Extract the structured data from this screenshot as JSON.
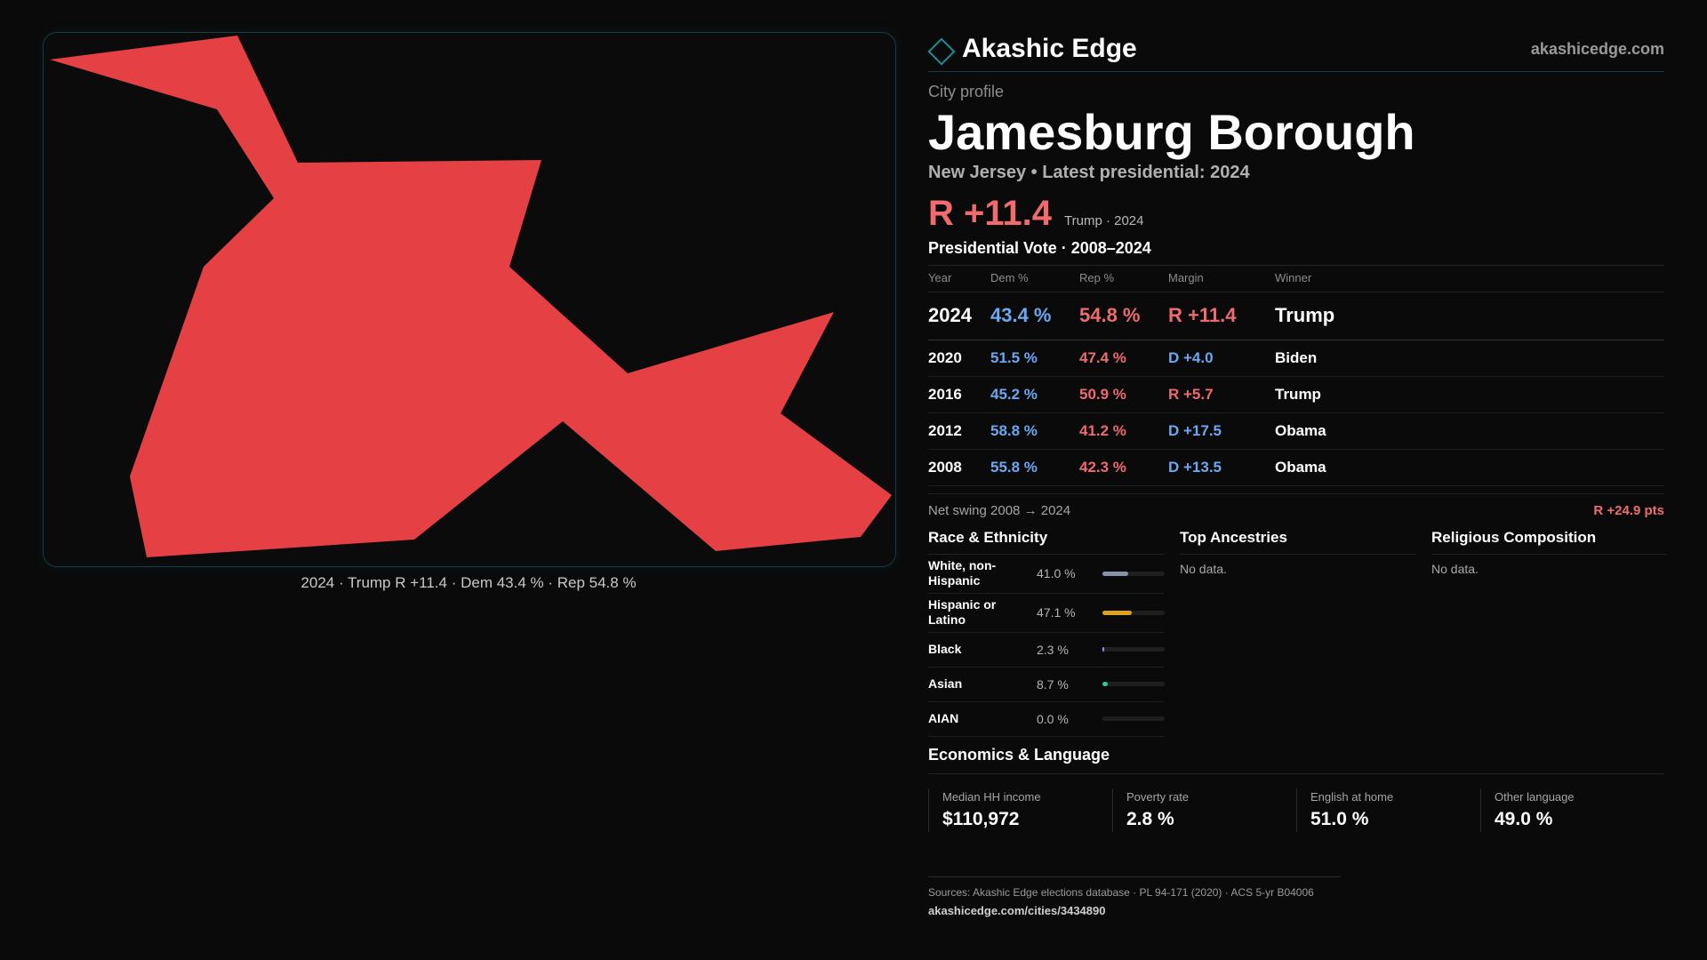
{
  "map": {
    "fill_color": "#e54043",
    "caption": "2024 · Trump R +11.4 · Dem 43.4 % · Rep 54.8 %"
  },
  "brand": {
    "name": "Akashic Edge",
    "url": "akashicedge.com",
    "accent": "#1e8d98"
  },
  "profile": {
    "kicker": "City profile",
    "city": "Jamesburg Borough",
    "subline": "New Jersey • Latest presidential: 2024",
    "headline_margin": "R +11.4",
    "headline_note": "Trump · 2024"
  },
  "votes": {
    "title": "Presidential Vote · 2008–2024",
    "headers": {
      "year": "Year",
      "dem": "Dem %",
      "rep": "Rep %",
      "margin": "Margin",
      "winner": "Winner"
    },
    "rows": [
      {
        "year": "2024",
        "dem": "43.4 %",
        "rep": "54.8 %",
        "margin": "R +11.4",
        "winner": "Trump"
      },
      {
        "year": "2020",
        "dem": "51.5 %",
        "rep": "47.4 %",
        "margin": "D +4.0",
        "winner": "Biden"
      },
      {
        "year": "2016",
        "dem": "45.2 %",
        "rep": "50.9 %",
        "margin": "R +5.7",
        "winner": "Trump"
      },
      {
        "year": "2012",
        "dem": "58.8 %",
        "rep": "41.2 %",
        "margin": "D +17.5",
        "winner": "Obama"
      },
      {
        "year": "2008",
        "dem": "55.8 %",
        "rep": "42.3 %",
        "margin": "D +13.5",
        "winner": "Obama"
      }
    ],
    "swing_label": "Net swing 2008 → 2024",
    "swing_value": "R +24.9 pts"
  },
  "race": {
    "title": "Race & Ethnicity",
    "rows": [
      {
        "label": "White, non-Hispanic",
        "value": "41.0 %",
        "fraction": 0.41,
        "color": "#8a93a6"
      },
      {
        "label": "Hispanic or Latino",
        "value": "47.1 %",
        "fraction": 0.471,
        "color": "#e0a21a"
      },
      {
        "label": "Black",
        "value": "2.3 %",
        "fraction": 0.023,
        "color": "#9a8cf0"
      },
      {
        "label": "Asian",
        "value": "8.7 %",
        "fraction": 0.087,
        "color": "#2fc79a"
      },
      {
        "label": "AIAN",
        "value": "0.0 %",
        "fraction": 0.0,
        "color": "#d06ad6"
      }
    ]
  },
  "ancestries": {
    "title": "Top Ancestries",
    "empty": "No data."
  },
  "religion": {
    "title": "Religious Composition",
    "empty": "No data."
  },
  "economics": {
    "title": "Economics & Language",
    "stats": [
      {
        "label": "Median HH income",
        "value": "$110,972"
      },
      {
        "label": "Poverty rate",
        "value": "2.8 %"
      },
      {
        "label": "English at home",
        "value": "51.0 %"
      },
      {
        "label": "Other language",
        "value": "49.0 %"
      }
    ]
  },
  "footer": {
    "sources": "Sources: Akashic Edge elections database · PL 94-171 (2020) · ACS 5-yr B04006",
    "url": "akashicedge.com/cities/3434890"
  }
}
